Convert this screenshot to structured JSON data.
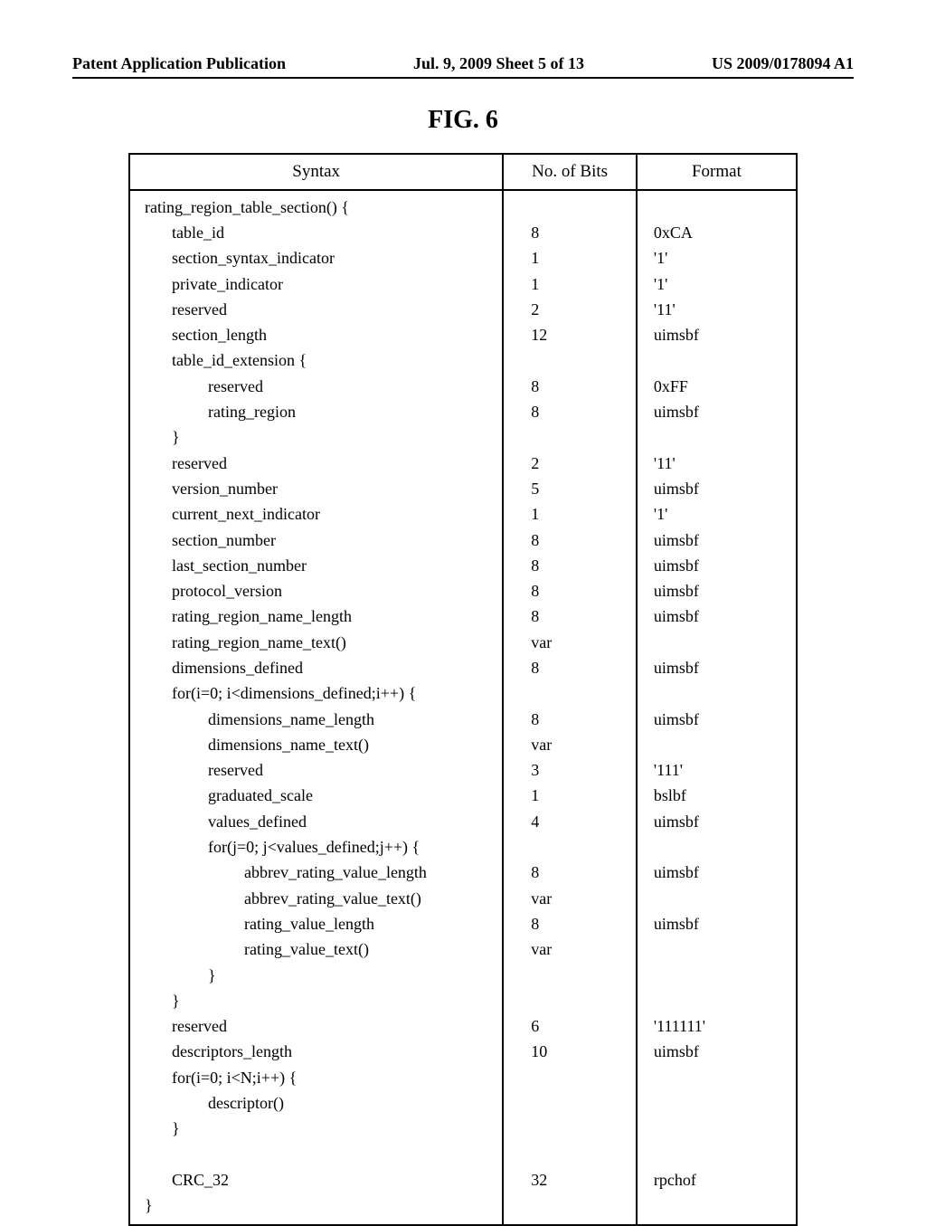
{
  "header": {
    "left": "Patent Application Publication",
    "center": "Jul. 9, 2009  Sheet 5 of 13",
    "right": "US 2009/0178094 A1"
  },
  "figure_title": "FIG. 6",
  "table": {
    "columns": [
      "Syntax",
      "No. of Bits",
      "Format"
    ],
    "rows": [
      {
        "syntax": "rating_region_table_section() {",
        "indent": 0,
        "bits": "",
        "fmt": ""
      },
      {
        "syntax": "table_id",
        "indent": 1,
        "bits": "8",
        "fmt": "0xCA"
      },
      {
        "syntax": "section_syntax_indicator",
        "indent": 1,
        "bits": "1",
        "fmt": "'1'"
      },
      {
        "syntax": "private_indicator",
        "indent": 1,
        "bits": "1",
        "fmt": "'1'"
      },
      {
        "syntax": "reserved",
        "indent": 1,
        "bits": "2",
        "fmt": "'11'"
      },
      {
        "syntax": "section_length",
        "indent": 1,
        "bits": "12",
        "fmt": "uimsbf"
      },
      {
        "syntax": "table_id_extension {",
        "indent": 1,
        "bits": "",
        "fmt": ""
      },
      {
        "syntax": "reserved",
        "indent": 2,
        "bits": "8",
        "fmt": "0xFF"
      },
      {
        "syntax": "rating_region",
        "indent": 2,
        "bits": "8",
        "fmt": "uimsbf"
      },
      {
        "syntax": "}",
        "indent": 1,
        "bits": "",
        "fmt": ""
      },
      {
        "syntax": "reserved",
        "indent": 1,
        "bits": "2",
        "fmt": "'11'"
      },
      {
        "syntax": "version_number",
        "indent": 1,
        "bits": "5",
        "fmt": "uimsbf"
      },
      {
        "syntax": "current_next_indicator",
        "indent": 1,
        "bits": "1",
        "fmt": "'1'"
      },
      {
        "syntax": "section_number",
        "indent": 1,
        "bits": "8",
        "fmt": "uimsbf"
      },
      {
        "syntax": "last_section_number",
        "indent": 1,
        "bits": "8",
        "fmt": "uimsbf"
      },
      {
        "syntax": "protocol_version",
        "indent": 1,
        "bits": "8",
        "fmt": "uimsbf"
      },
      {
        "syntax": "rating_region_name_length",
        "indent": 1,
        "bits": "8",
        "fmt": "uimsbf"
      },
      {
        "syntax": "rating_region_name_text()",
        "indent": 1,
        "bits": "var",
        "fmt": ""
      },
      {
        "syntax": "dimensions_defined",
        "indent": 1,
        "bits": "8",
        "fmt": "uimsbf"
      },
      {
        "syntax": "for(i=0; i<dimensions_defined;i++) {",
        "indent": 1,
        "bits": "",
        "fmt": ""
      },
      {
        "syntax": "dimensions_name_length",
        "indent": 2,
        "bits": "8",
        "fmt": "uimsbf"
      },
      {
        "syntax": "dimensions_name_text()",
        "indent": 2,
        "bits": "var",
        "fmt": ""
      },
      {
        "syntax": "reserved",
        "indent": 2,
        "bits": "3",
        "fmt": "'111'"
      },
      {
        "syntax": "graduated_scale",
        "indent": 2,
        "bits": "1",
        "fmt": "bslbf"
      },
      {
        "syntax": "values_defined",
        "indent": 2,
        "bits": "4",
        "fmt": "uimsbf"
      },
      {
        "syntax": "for(j=0; j<values_defined;j++) {",
        "indent": 2,
        "bits": "",
        "fmt": ""
      },
      {
        "syntax": "abbrev_rating_value_length",
        "indent": 3,
        "bits": "8",
        "fmt": "uimsbf"
      },
      {
        "syntax": "abbrev_rating_value_text()",
        "indent": 3,
        "bits": "var",
        "fmt": ""
      },
      {
        "syntax": "rating_value_length",
        "indent": 3,
        "bits": "8",
        "fmt": "uimsbf"
      },
      {
        "syntax": "rating_value_text()",
        "indent": 3,
        "bits": "var",
        "fmt": ""
      },
      {
        "syntax": "}",
        "indent": 2,
        "bits": "",
        "fmt": ""
      },
      {
        "syntax": "}",
        "indent": 1,
        "bits": "",
        "fmt": ""
      },
      {
        "syntax": "reserved",
        "indent": 1,
        "bits": "6",
        "fmt": "'111111'"
      },
      {
        "syntax": "descriptors_length",
        "indent": 1,
        "bits": "10",
        "fmt": "uimsbf"
      },
      {
        "syntax": "for(i=0; i<N;i++) {",
        "indent": 1,
        "bits": "",
        "fmt": ""
      },
      {
        "syntax": "descriptor()",
        "indent": 2,
        "bits": "",
        "fmt": ""
      },
      {
        "syntax": "}",
        "indent": 1,
        "bits": "",
        "fmt": ""
      },
      {
        "syntax": "",
        "indent": 1,
        "bits": "",
        "fmt": ""
      },
      {
        "syntax": "CRC_32",
        "indent": 1,
        "bits": "32",
        "fmt": "rpchof"
      },
      {
        "syntax": "}",
        "indent": 0,
        "bits": "",
        "fmt": ""
      }
    ]
  }
}
